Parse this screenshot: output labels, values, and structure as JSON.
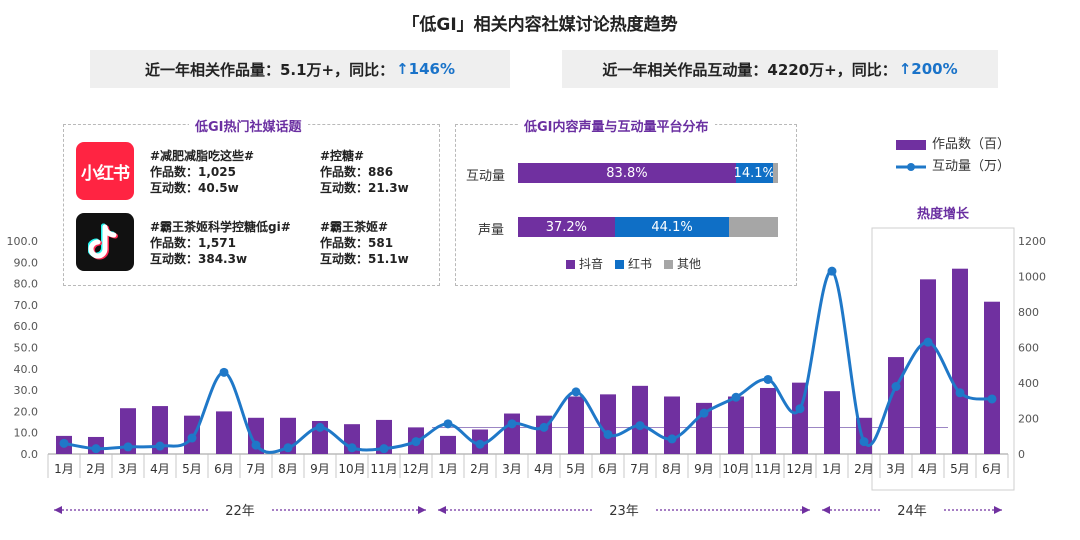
{
  "title": "「低GI」相关内容社媒讨论热度趋势",
  "kpi": [
    {
      "label": "近一年相关作品量：5.1万+，同比：",
      "value": "↑146%"
    },
    {
      "label": "近一年相关作品互动量：4220万+，同比：",
      "value": "↑200%"
    }
  ],
  "topics_panel": {
    "title": "低GI热门社媒话题",
    "apps": [
      {
        "icon": "xiaohongshu-logo",
        "logo_text": "小红书",
        "color": "#ff2442",
        "topics": [
          {
            "name": "#减肥减脂吃这些#",
            "works": "作品数：1,025",
            "inter": "互动数：40.5w"
          },
          {
            "name": "#控糖#",
            "works": "作品数：886",
            "inter": "互动数：21.3w"
          }
        ]
      },
      {
        "icon": "douyin-logo",
        "logo_text": "",
        "color": "#111111",
        "topics": [
          {
            "name": "#霸王茶姬科学控糖低gi#",
            "works": "作品数：1,571",
            "inter": "互动数：384.3w"
          },
          {
            "name": "#霸王茶姬#",
            "works": "作品数：581",
            "inter": "互动数：51.1w"
          }
        ]
      }
    ]
  },
  "platform_panel": {
    "title": "低GI内容声量与互动量平台分布",
    "rows": [
      {
        "label": "互动量",
        "segments": [
          {
            "name": "抖音",
            "value": 83.8,
            "text": "83.8%"
          },
          {
            "name": "红书",
            "value": 14.1,
            "text": "14.1%"
          },
          {
            "name": "其他",
            "value": 2.1,
            "text": ""
          }
        ]
      },
      {
        "label": "声量",
        "segments": [
          {
            "name": "抖音",
            "value": 37.2,
            "text": "37.2%"
          },
          {
            "name": "红书",
            "value": 44.1,
            "text": "44.1%"
          },
          {
            "name": "其他",
            "value": 18.7,
            "text": ""
          }
        ]
      }
    ],
    "legend": [
      {
        "name": "抖音",
        "color": "#7030a0"
      },
      {
        "name": "红书",
        "color": "#0f6fc6"
      },
      {
        "name": "其他",
        "color": "#a6a6a6"
      }
    ]
  },
  "colors": {
    "bar": "#7030a0",
    "line": "#1f78c8",
    "accent": "#1a73c9",
    "title_purple": "#6a2fa1"
  },
  "chart_data": {
    "type": "bar+line",
    "categories": [
      "1月",
      "2月",
      "3月",
      "4月",
      "5月",
      "6月",
      "7月",
      "8月",
      "9月",
      "10月",
      "11月",
      "12月",
      "1月",
      "2月",
      "3月",
      "4月",
      "5月",
      "6月",
      "7月",
      "8月",
      "9月",
      "10月",
      "11月",
      "12月",
      "1月",
      "2月",
      "3月",
      "4月",
      "5月",
      "6月"
    ],
    "year_groups": [
      {
        "label": "22年",
        "start": 0,
        "end": 11
      },
      {
        "label": "23年",
        "start": 12,
        "end": 23
      },
      {
        "label": "24年",
        "start": 24,
        "end": 29
      }
    ],
    "series": [
      {
        "name": "作品数（百）",
        "type": "bar",
        "axis": "left",
        "values": [
          8.5,
          8,
          21.5,
          22.5,
          18,
          20,
          17,
          17,
          15.5,
          14,
          16,
          12.5,
          8.5,
          11.5,
          19,
          18,
          27,
          28,
          32,
          27,
          24,
          27,
          31,
          33.5,
          29.5,
          17,
          45.5,
          82,
          87,
          71.5
        ]
      },
      {
        "name": "互动量（万）",
        "type": "line",
        "axis": "right",
        "values": [
          60,
          30,
          40,
          45,
          90,
          460,
          50,
          35,
          150,
          35,
          30,
          70,
          170,
          55,
          170,
          150,
          350,
          110,
          160,
          85,
          230,
          320,
          420,
          255,
          1030,
          70,
          380,
          630,
          345,
          310
        ]
      }
    ],
    "y_left": {
      "min": 0,
      "max": 100,
      "ticks": [
        "0.0",
        "10.0",
        "20.0",
        "30.0",
        "40.0",
        "50.0",
        "60.0",
        "70.0",
        "80.0",
        "90.0",
        "100.0"
      ]
    },
    "y_right": {
      "min": 0,
      "max": 1200,
      "ticks": [
        "0",
        "200",
        "400",
        "600",
        "800",
        "1000",
        "1200"
      ]
    },
    "annotation": "热度增长",
    "legend": [
      "作品数（百）",
      "互动量（万）"
    ]
  }
}
